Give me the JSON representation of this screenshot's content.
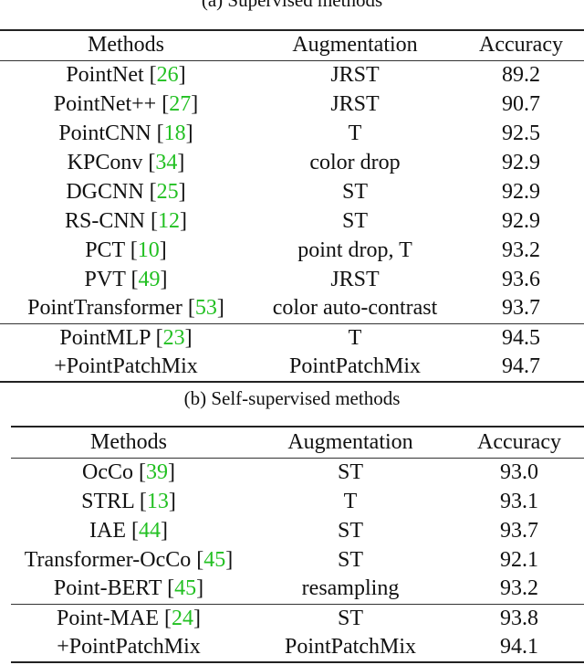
{
  "captions": {
    "supervised": "(a) Supervised methods",
    "self_supervised": "(b) Self-supervised methods"
  },
  "headers": {
    "methods": "Methods",
    "augmentation": "Augmentation",
    "accuracy": "Accuracy"
  },
  "supervised": {
    "rows": [
      {
        "method": "PointNet",
        "ref": "26",
        "augmentation": "JRST",
        "accuracy": "89.2"
      },
      {
        "method": "PointNet++",
        "ref": "27",
        "augmentation": "JRST",
        "accuracy": "90.7"
      },
      {
        "method": "PointCNN",
        "ref": "18",
        "augmentation": "T",
        "accuracy": "92.5"
      },
      {
        "method": "KPConv",
        "ref": "34",
        "augmentation": "color drop",
        "accuracy": "92.9"
      },
      {
        "method": "DGCNN",
        "ref": "25",
        "augmentation": "ST",
        "accuracy": "92.9"
      },
      {
        "method": "RS-CNN",
        "ref": "12",
        "augmentation": "ST",
        "accuracy": "92.9"
      },
      {
        "method": "PCT",
        "ref": "10",
        "augmentation": "point drop, T",
        "accuracy": "93.2"
      },
      {
        "method": "PVT",
        "ref": "49",
        "augmentation": "JRST",
        "accuracy": "93.6"
      },
      {
        "method": "PointTransformer",
        "ref": "53",
        "augmentation": "color auto-contrast",
        "accuracy": "93.7"
      }
    ],
    "ours": [
      {
        "method": "PointMLP",
        "ref": "23",
        "augmentation": "T",
        "accuracy": "94.5"
      },
      {
        "method": "+PointPatchMix",
        "ref": "",
        "augmentation": "PointPatchMix",
        "accuracy": "94.7"
      }
    ]
  },
  "self_supervised": {
    "rows": [
      {
        "method": "OcCo",
        "ref": "39",
        "augmentation": "ST",
        "accuracy": "93.0"
      },
      {
        "method": "STRL",
        "ref": "13",
        "augmentation": "T",
        "accuracy": "93.1"
      },
      {
        "method": "IAE",
        "ref": "44",
        "augmentation": "ST",
        "accuracy": "93.7"
      },
      {
        "method": "Transformer-OcCo",
        "ref": "45",
        "augmentation": "ST",
        "accuracy": "92.1"
      },
      {
        "method": "Point-BERT",
        "ref": "45",
        "augmentation": "resampling",
        "accuracy": "93.2"
      }
    ],
    "ours": [
      {
        "method": "Point-MAE",
        "ref": "24",
        "augmentation": "ST",
        "accuracy": "93.8"
      },
      {
        "method": "+PointPatchMix",
        "ref": "",
        "augmentation": "PointPatchMix",
        "accuracy": "94.1"
      }
    ]
  },
  "colors": {
    "reference": "#22c022",
    "text": "#111111"
  }
}
